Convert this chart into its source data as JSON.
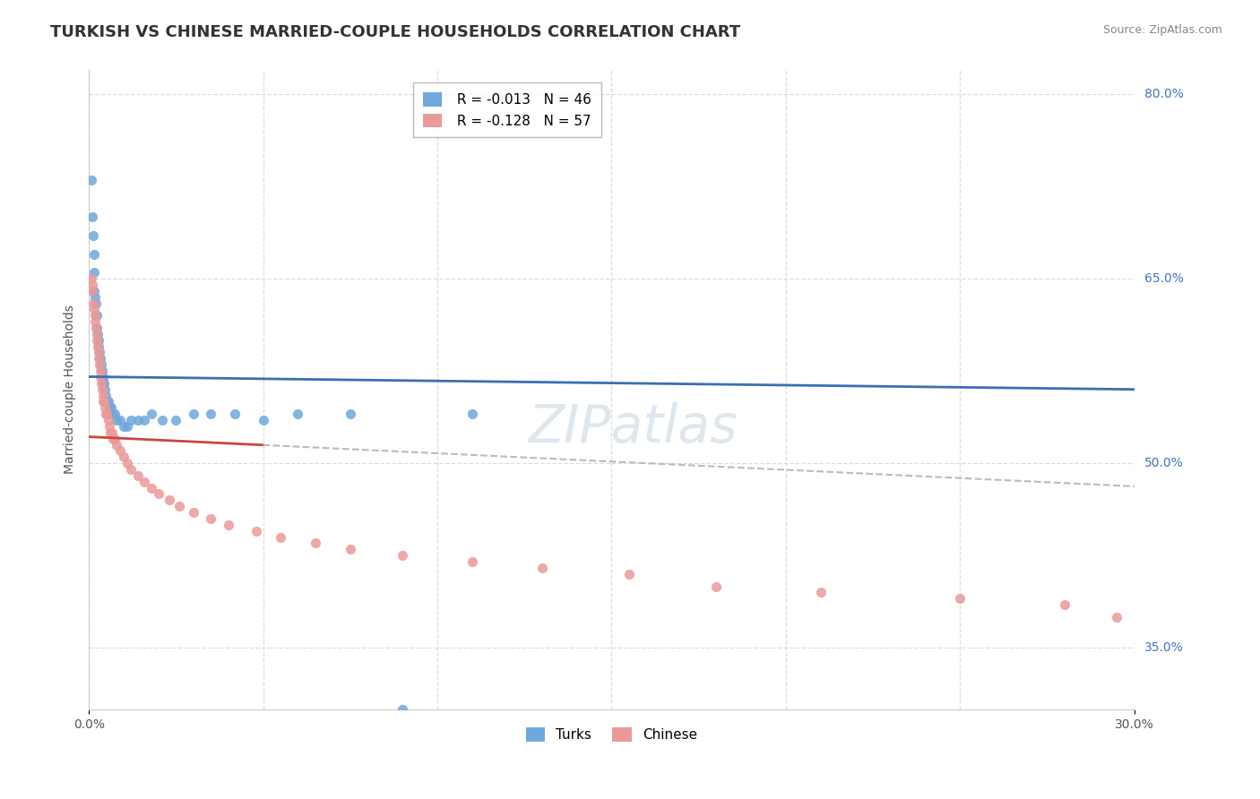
{
  "title": "TURKISH VS CHINESE MARRIED-COUPLE HOUSEHOLDS CORRELATION CHART",
  "source": "Source: ZipAtlas.com",
  "xmin": 0.0,
  "xmax": 30.0,
  "ymin": 30.0,
  "ymax": 82.0,
  "yticks": [
    35.0,
    50.0,
    65.0,
    80.0
  ],
  "ylabel": "Married-couple Households",
  "turks_R": -0.013,
  "turks_N": 46,
  "chinese_R": -0.128,
  "chinese_N": 57,
  "turks_color": "#6fa8dc",
  "chinese_color": "#ea9999",
  "turks_line_color": "#3c6eb4",
  "chinese_line_color": "#cc4444",
  "chinese_dashed_color": "#bbbbbb",
  "legend_turks": "Turks",
  "legend_chinese": "Chinese",
  "background_color": "#ffffff",
  "grid_color": "#dddddd",
  "title_fontsize": 13,
  "axis_label_fontsize": 10,
  "legend_fontsize": 11,
  "turks_x": [
    0.08,
    0.1,
    0.12,
    0.14,
    0.15,
    0.16,
    0.18,
    0.2,
    0.22,
    0.24,
    0.25,
    0.27,
    0.28,
    0.3,
    0.32,
    0.35,
    0.38,
    0.4,
    0.42,
    0.44,
    0.46,
    0.48,
    0.5,
    0.55,
    0.6,
    0.65,
    0.7,
    0.75,
    0.8,
    0.9,
    1.0,
    1.1,
    1.2,
    1.4,
    1.6,
    1.8,
    2.1,
    2.5,
    3.0,
    3.5,
    4.2,
    5.0,
    6.0,
    7.5,
    9.0,
    11.0
  ],
  "turks_y": [
    73.0,
    70.0,
    68.5,
    67.0,
    65.5,
    64.0,
    63.5,
    63.0,
    62.0,
    61.0,
    60.5,
    60.0,
    59.5,
    59.0,
    58.5,
    58.0,
    57.5,
    57.0,
    56.5,
    56.5,
    56.0,
    55.5,
    55.0,
    55.0,
    54.5,
    54.5,
    54.0,
    54.0,
    53.5,
    53.5,
    53.0,
    53.0,
    53.5,
    53.5,
    53.5,
    54.0,
    53.5,
    53.5,
    54.0,
    54.0,
    54.0,
    53.5,
    54.0,
    54.0,
    30.0,
    54.0
  ],
  "chinese_x": [
    0.07,
    0.09,
    0.11,
    0.13,
    0.15,
    0.17,
    0.18,
    0.2,
    0.22,
    0.24,
    0.25,
    0.27,
    0.28,
    0.3,
    0.32,
    0.34,
    0.36,
    0.38,
    0.4,
    0.42,
    0.44,
    0.46,
    0.48,
    0.5,
    0.55,
    0.58,
    0.62,
    0.66,
    0.7,
    0.75,
    0.8,
    0.9,
    1.0,
    1.1,
    1.2,
    1.4,
    1.6,
    1.8,
    2.0,
    2.3,
    2.6,
    3.0,
    3.5,
    4.0,
    4.8,
    5.5,
    6.5,
    7.5,
    9.0,
    11.0,
    13.0,
    15.5,
    18.0,
    21.0,
    25.0,
    28.0,
    29.5
  ],
  "chinese_y": [
    65.0,
    64.5,
    64.0,
    63.0,
    62.5,
    62.0,
    61.5,
    61.0,
    60.5,
    60.0,
    59.5,
    59.0,
    58.5,
    58.0,
    57.5,
    57.0,
    56.5,
    56.0,
    55.5,
    55.0,
    55.0,
    54.5,
    54.0,
    54.0,
    53.5,
    53.0,
    52.5,
    52.5,
    52.0,
    52.0,
    51.5,
    51.0,
    50.5,
    50.0,
    49.5,
    49.0,
    48.5,
    48.0,
    47.5,
    47.0,
    46.5,
    46.0,
    45.5,
    45.0,
    44.5,
    44.0,
    43.5,
    43.0,
    42.5,
    42.0,
    41.5,
    41.0,
    40.0,
    39.5,
    39.0,
    38.5,
    37.5
  ]
}
